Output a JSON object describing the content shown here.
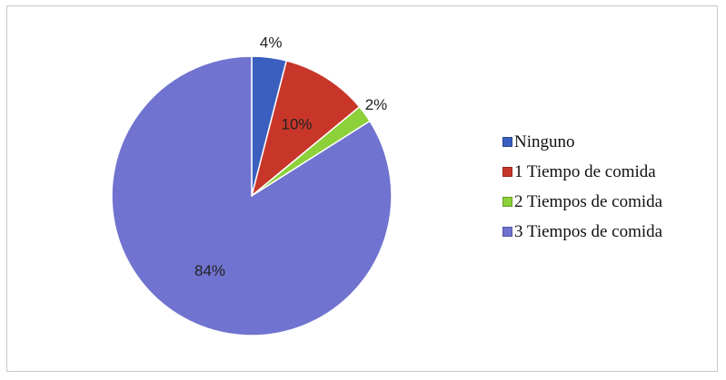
{
  "chart_data": {
    "type": "pie",
    "categories": [
      "Ninguno",
      "1 Tiempo de comida",
      "2 Tiempos de comida",
      "3 Tiempos de comida"
    ],
    "values": [
      4,
      10,
      2,
      84
    ],
    "labels": [
      "4%",
      "10%",
      "2%",
      "84%"
    ],
    "colors": [
      "#3a5fbf",
      "#c8362a",
      "#8cd03a",
      "#7073cf"
    ],
    "legend_position": "right"
  }
}
